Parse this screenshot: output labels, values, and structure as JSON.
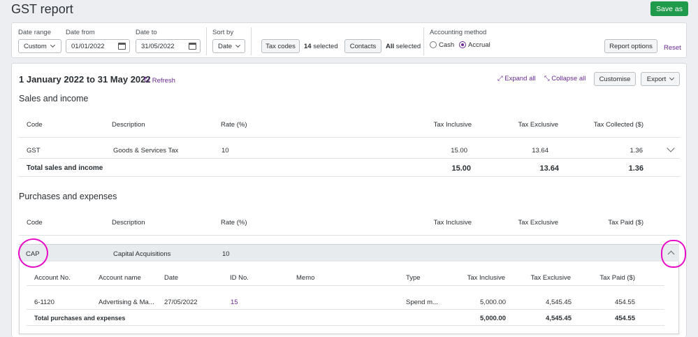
{
  "header": {
    "title": "GST report",
    "save_as": "Save as"
  },
  "filters": {
    "date_range_label": "Date range",
    "date_range_value": "Custom",
    "date_from_label": "Date from",
    "date_from_value": "01/01/2022",
    "date_to_label": "Date to",
    "date_to_value": "31/05/2022",
    "sort_by_label": "Sort by",
    "sort_by_value": "Date",
    "tax_codes_button": "Tax codes",
    "tax_codes_count": "14",
    "tax_codes_suffix": "selected",
    "contacts_button": "Contacts",
    "contacts_all": "All",
    "contacts_suffix": "selected",
    "accounting_method_label": "Accounting method",
    "cash_label": "Cash",
    "accrual_label": "Accrual",
    "selected_method": "Accrual",
    "report_options": "Report options",
    "reset": "Reset"
  },
  "report": {
    "period": "1 January 2022 to 31 May 2022",
    "refresh": "Refresh",
    "expand_all": "Expand all",
    "collapse_all": "Collapse all",
    "customise": "Customise",
    "export": "Export",
    "sales": {
      "title": "Sales and income",
      "headers": {
        "code": "Code",
        "description": "Description",
        "rate": "Rate (%)",
        "tax_inclusive": "Tax Inclusive",
        "tax_exclusive": "Tax Exclusive",
        "tax_collected": "Tax Collected ($)"
      },
      "row": {
        "code": "GST",
        "description": "Goods & Services Tax",
        "rate": "10",
        "tax_inclusive": "15.00",
        "tax_exclusive": "13.64",
        "tax_collected": "1.36"
      },
      "total": {
        "label": "Total sales and income",
        "tax_inclusive": "15.00",
        "tax_exclusive": "13.64",
        "tax_collected": "1.36"
      }
    },
    "purchases": {
      "title": "Purchases and expenses",
      "headers": {
        "code": "Code",
        "description": "Description",
        "rate": "Rate (%)",
        "tax_inclusive": "Tax Inclusive",
        "tax_exclusive": "Tax Exclusive",
        "tax_paid": "Tax Paid ($)"
      },
      "row": {
        "code": "CAP",
        "description": "Capital Acquisitions",
        "rate": "10"
      },
      "detail_headers": {
        "account_no": "Account No.",
        "account_name": "Account name",
        "date": "Date",
        "id_no": "ID No.",
        "memo": "Memo",
        "type": "Type",
        "tax_inclusive": "Tax Inclusive",
        "tax_exclusive": "Tax Exclusive",
        "tax_paid": "Tax Paid ($)"
      },
      "detail_row": {
        "account_no": "6-1120",
        "account_name": "Advertising & Ma...",
        "date": "27/05/2022",
        "id_no": "15",
        "memo": "",
        "type": "Spend m...",
        "tax_inclusive": "5,000.00",
        "tax_exclusive": "4,545.45",
        "tax_paid": "454.55"
      },
      "detail_total": {
        "label": "Total purchases and expenses",
        "tax_inclusive": "5,000.00",
        "tax_exclusive": "4,545.45",
        "tax_paid": "454.55"
      }
    }
  },
  "colors": {
    "accent": "#6b2a93",
    "save": "#1f9a4a",
    "annotation": "#e80cc6"
  },
  "icons": [
    "calendar-icon",
    "refresh-icon",
    "expand-icon",
    "collapse-icon",
    "chevron-down-icon",
    "chevron-up-icon"
  ]
}
